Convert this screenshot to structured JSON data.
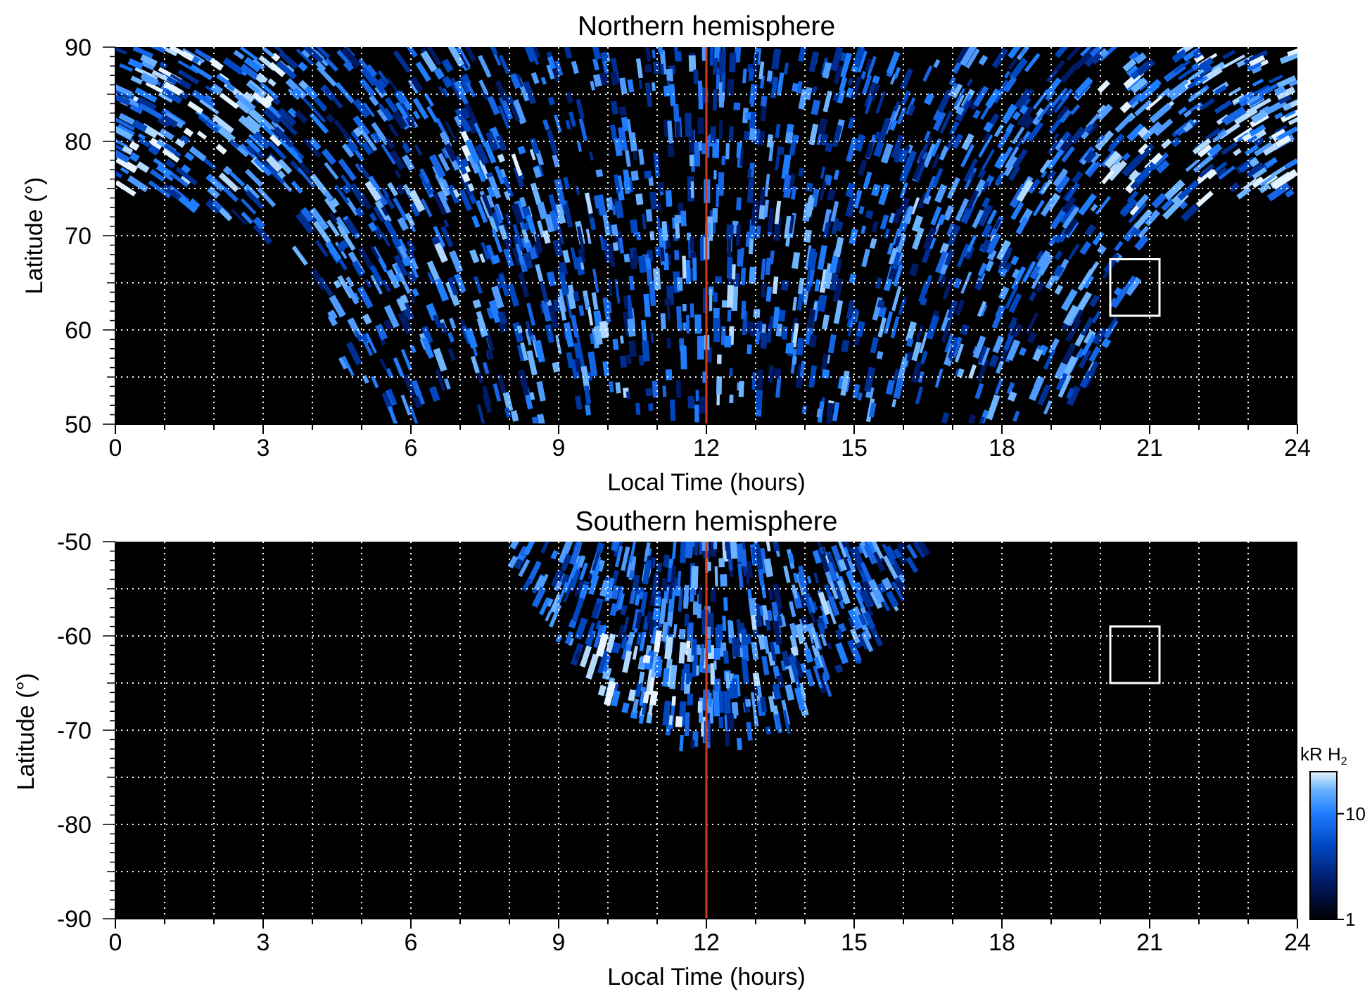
{
  "chart_data": [
    {
      "type": "heatmap",
      "title": "Northern hemisphere",
      "xlabel": "Local Time (hours)",
      "ylabel": "Latitude (°)",
      "xlim": [
        0,
        24
      ],
      "ylim": [
        50,
        90
      ],
      "xticks": [
        0,
        3,
        6,
        9,
        12,
        15,
        18,
        21,
        24
      ],
      "yticks": [
        50,
        60,
        70,
        80,
        90
      ],
      "grid": "dotted, every 1 hour and 5 degrees",
      "noon_line": {
        "x": 12,
        "color": "#d23a1e"
      },
      "box": {
        "x0": 20.2,
        "x1": 21.2,
        "y0": 61.5,
        "y1": 67.5
      },
      "coverage_edge": [
        [
          0,
          73.5
        ],
        [
          1,
          73.2
        ],
        [
          2,
          72
        ],
        [
          3,
          70
        ],
        [
          3.5,
          68
        ],
        [
          4,
          65
        ],
        [
          4.5,
          58
        ],
        [
          5,
          50
        ],
        [
          19.5,
          50
        ],
        [
          20,
          56
        ],
        [
          20.5,
          62
        ],
        [
          21,
          68
        ],
        [
          21.5,
          71
        ],
        [
          22,
          72.5
        ],
        [
          23,
          73.8
        ],
        [
          24,
          74
        ]
      ],
      "bright_regions": [
        {
          "lt": [
            0,
            3.5
          ],
          "lat": [
            75,
            90
          ],
          "level": "high"
        },
        {
          "lt": [
            20,
            24
          ],
          "lat": [
            70,
            90
          ],
          "level": "high"
        },
        {
          "lt": [
            7,
            9
          ],
          "lat": [
            74,
            80
          ],
          "level": "high"
        },
        {
          "lt": [
            4,
            20
          ],
          "lat": [
            50,
            75
          ],
          "level": "medium"
        }
      ]
    },
    {
      "type": "heatmap",
      "title": "Southern hemisphere",
      "xlabel": "Local Time (hours)",
      "ylabel": "Latitude (°)",
      "xlim": [
        0,
        24
      ],
      "ylim": [
        -90,
        -50
      ],
      "xticks": [
        0,
        3,
        6,
        9,
        12,
        15,
        18,
        21,
        24
      ],
      "yticks": [
        -90,
        -80,
        -70,
        -60,
        -50
      ],
      "grid": "dotted, every 1 hour and 5 degrees",
      "noon_line": {
        "x": 12,
        "color": "#d23a1e"
      },
      "box": {
        "x0": 20.2,
        "x1": 21.2,
        "y0": -65,
        "y1": -59
      },
      "coverage_edge": [
        [
          7.8,
          -50
        ],
        [
          8.5,
          -56
        ],
        [
          9.2,
          -62
        ],
        [
          10,
          -67
        ],
        [
          10.8,
          -70
        ],
        [
          11.5,
          -71.5
        ],
        [
          12,
          -72
        ],
        [
          12.8,
          -71.5
        ],
        [
          13.5,
          -70
        ],
        [
          14.2,
          -67
        ],
        [
          15,
          -63
        ],
        [
          15.8,
          -58
        ],
        [
          16.4,
          -50
        ]
      ],
      "bright_regions": [
        {
          "lt": [
            9.5,
            12
          ],
          "lat": [
            -70,
            -60
          ],
          "level": "high"
        },
        {
          "lt": [
            12,
            15.5
          ],
          "lat": [
            -68,
            -50
          ],
          "level": "medium"
        }
      ]
    }
  ],
  "colorbar": {
    "title": "kR H",
    "title_subscript": "2",
    "tick_labels": [
      "10",
      "1"
    ],
    "ticks": [
      10,
      1
    ],
    "range": [
      1,
      25
    ],
    "scale": "log",
    "colors": [
      "#000000",
      "#001a66",
      "#0047c2",
      "#1f7dff",
      "#6db4ff",
      "#e6f4ff"
    ]
  }
}
